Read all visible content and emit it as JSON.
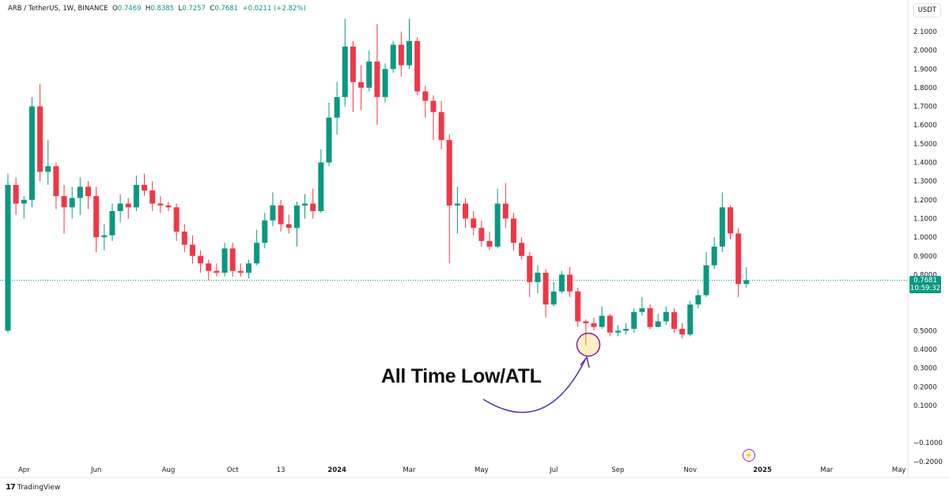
{
  "header": {
    "symbol": "ARB / TetherUS, 1W, BINANCE",
    "open_label": "O",
    "open": "0.7469",
    "high_label": "H",
    "high": "0.8385",
    "low_label": "L",
    "low": "0.7257",
    "close_label": "C",
    "close": "0.7681",
    "change": "+0.0211 (+2.82%)"
  },
  "currency": "USDT",
  "brand": {
    "logo_mark": "17",
    "name": "TradingView"
  },
  "last_price": {
    "value": "0.7681",
    "countdown": "10:59:32",
    "color": "#089981"
  },
  "annotation": {
    "text": "All Time Low/ATL",
    "highlight_color": "#ffd54f",
    "arrow_color": "#5e35b1"
  },
  "colors": {
    "up": "#089981",
    "down": "#f23645",
    "price_line": "#089981"
  },
  "chart_data": {
    "type": "candlestick",
    "interval": "1W",
    "ylim": [
      -0.22,
      2.18
    ],
    "y_ticks": [
      2.1,
      2.0,
      1.9,
      1.8,
      1.7,
      1.6,
      1.5,
      1.4,
      1.3,
      1.2,
      1.1,
      1.0,
      0.9,
      0.8,
      0.5,
      0.4,
      0.3,
      0.2,
      0.1,
      -0.1,
      -0.2
    ],
    "y_tick_labels": [
      "2.1000",
      "2.0000",
      "1.9000",
      "1.8000",
      "1.7000",
      "1.6000",
      "1.5000",
      "1.4000",
      "1.3000",
      "1.2000",
      "1.1000",
      "1.0000",
      "0.9000",
      "0.8000",
      "0.5000",
      "0.4000",
      "0.3000",
      "0.2000",
      "0.1000",
      "−0.1000",
      "−0.2000"
    ],
    "x_labels": [
      {
        "label": "Apr",
        "bar": 2
      },
      {
        "label": "Jun",
        "bar": 11
      },
      {
        "label": "Aug",
        "bar": 20
      },
      {
        "label": "Oct",
        "bar": 28
      },
      {
        "label": "13",
        "bar": 34
      },
      {
        "label": "2024",
        "bar": 41
      },
      {
        "label": "Mar",
        "bar": 50
      },
      {
        "label": "May",
        "bar": 59
      },
      {
        "label": "Jul",
        "bar": 68
      },
      {
        "label": "Sep",
        "bar": 76
      },
      {
        "label": "Nov",
        "bar": 85
      },
      {
        "label": "2025",
        "bar": 94
      },
      {
        "label": "Mar",
        "bar": 102
      },
      {
        "label": "May",
        "bar": 111
      }
    ],
    "candles": [
      [
        0.5,
        1.28,
        1.34,
        0.49
      ],
      [
        1.28,
        1.18,
        1.32,
        1.12
      ],
      [
        1.18,
        1.2,
        1.22,
        1.1
      ],
      [
        1.2,
        1.7,
        1.75,
        1.16
      ],
      [
        1.7,
        1.35,
        1.82,
        1.3
      ],
      [
        1.35,
        1.38,
        1.52,
        1.28
      ],
      [
        1.38,
        1.22,
        1.4,
        1.15
      ],
      [
        1.22,
        1.16,
        1.28,
        1.02
      ],
      [
        1.16,
        1.21,
        1.27,
        1.1
      ],
      [
        1.21,
        1.27,
        1.32,
        1.12
      ],
      [
        1.27,
        1.22,
        1.3,
        1.15
      ],
      [
        1.22,
        1.0,
        1.27,
        0.92
      ],
      [
        1.0,
        1.01,
        1.07,
        0.93
      ],
      [
        1.01,
        1.14,
        1.18,
        0.98
      ],
      [
        1.14,
        1.18,
        1.23,
        1.08
      ],
      [
        1.18,
        1.16,
        1.21,
        1.1
      ],
      [
        1.16,
        1.28,
        1.33,
        1.14
      ],
      [
        1.28,
        1.25,
        1.34,
        1.22
      ],
      [
        1.25,
        1.18,
        1.3,
        1.14
      ],
      [
        1.18,
        1.17,
        1.22,
        1.13
      ],
      [
        1.17,
        1.16,
        1.19,
        1.14
      ],
      [
        1.16,
        1.03,
        1.18,
        0.98
      ],
      [
        1.03,
        0.96,
        1.07,
        0.92
      ],
      [
        0.96,
        0.9,
        1.01,
        0.86
      ],
      [
        0.9,
        0.86,
        0.93,
        0.81
      ],
      [
        0.86,
        0.82,
        0.88,
        0.77
      ],
      [
        0.82,
        0.81,
        0.86,
        0.79
      ],
      [
        0.81,
        0.94,
        0.97,
        0.79
      ],
      [
        0.94,
        0.82,
        0.97,
        0.79
      ],
      [
        0.82,
        0.81,
        0.86,
        0.79
      ],
      [
        0.81,
        0.86,
        0.88,
        0.78
      ],
      [
        0.86,
        0.97,
        1.04,
        0.85
      ],
      [
        0.97,
        1.09,
        1.13,
        0.94
      ],
      [
        1.09,
        1.17,
        1.24,
        1.06
      ],
      [
        1.17,
        1.07,
        1.2,
        1.03
      ],
      [
        1.07,
        1.05,
        1.12,
        1.02
      ],
      [
        1.05,
        1.17,
        1.19,
        0.95
      ],
      [
        1.17,
        1.18,
        1.23,
        1.1
      ],
      [
        1.18,
        1.14,
        1.26,
        1.1
      ],
      [
        1.14,
        1.4,
        1.47,
        1.13
      ],
      [
        1.4,
        1.64,
        1.72,
        1.38
      ],
      [
        1.64,
        1.75,
        1.83,
        1.55
      ],
      [
        1.75,
        2.02,
        2.17,
        1.7
      ],
      [
        2.02,
        1.83,
        2.05,
        1.67
      ],
      [
        1.83,
        1.8,
        1.92,
        1.68
      ],
      [
        1.8,
        1.94,
        2.0,
        1.78
      ],
      [
        1.94,
        1.75,
        2.14,
        1.6
      ],
      [
        1.75,
        1.9,
        1.93,
        1.72
      ],
      [
        1.9,
        2.03,
        2.05,
        1.88
      ],
      [
        2.03,
        1.92,
        2.1,
        1.86
      ],
      [
        1.92,
        2.05,
        2.17,
        1.9
      ],
      [
        2.05,
        1.78,
        2.07,
        1.76
      ],
      [
        1.78,
        1.73,
        1.81,
        1.64
      ],
      [
        1.73,
        1.67,
        1.76,
        1.52
      ],
      [
        1.67,
        1.52,
        1.73,
        1.47
      ],
      [
        1.52,
        1.17,
        1.55,
        0.86
      ],
      [
        1.17,
        1.18,
        1.27,
        1.02
      ],
      [
        1.18,
        1.1,
        1.21,
        1.05
      ],
      [
        1.1,
        1.05,
        1.14,
        1.01
      ],
      [
        1.05,
        0.98,
        1.09,
        0.95
      ],
      [
        0.98,
        0.95,
        1.03,
        0.93
      ],
      [
        0.95,
        1.18,
        1.26,
        0.94
      ],
      [
        1.18,
        1.1,
        1.29,
        1.05
      ],
      [
        1.1,
        0.97,
        1.13,
        0.93
      ],
      [
        0.97,
        0.9,
        1.0,
        0.88
      ],
      [
        0.9,
        0.76,
        0.92,
        0.68
      ],
      [
        0.76,
        0.81,
        0.85,
        0.7
      ],
      [
        0.81,
        0.64,
        0.83,
        0.57
      ],
      [
        0.64,
        0.71,
        0.76,
        0.63
      ],
      [
        0.71,
        0.8,
        0.82,
        0.7
      ],
      [
        0.8,
        0.71,
        0.84,
        0.68
      ],
      [
        0.71,
        0.55,
        0.73,
        0.52
      ],
      [
        0.55,
        0.54,
        0.56,
        0.42
      ],
      [
        0.54,
        0.52,
        0.57,
        0.5
      ],
      [
        0.52,
        0.58,
        0.63,
        0.51
      ],
      [
        0.58,
        0.49,
        0.59,
        0.47
      ],
      [
        0.49,
        0.5,
        0.53,
        0.47
      ],
      [
        0.5,
        0.51,
        0.54,
        0.48
      ],
      [
        0.51,
        0.6,
        0.62,
        0.49
      ],
      [
        0.6,
        0.62,
        0.68,
        0.58
      ],
      [
        0.62,
        0.52,
        0.64,
        0.51
      ],
      [
        0.52,
        0.55,
        0.59,
        0.52
      ],
      [
        0.55,
        0.6,
        0.63,
        0.53
      ],
      [
        0.6,
        0.51,
        0.62,
        0.49
      ],
      [
        0.51,
        0.48,
        0.54,
        0.46
      ],
      [
        0.48,
        0.64,
        0.66,
        0.47
      ],
      [
        0.64,
        0.69,
        0.72,
        0.62
      ],
      [
        0.69,
        0.85,
        0.92,
        0.68
      ],
      [
        0.85,
        0.95,
        1.0,
        0.83
      ],
      [
        0.95,
        1.16,
        1.24,
        0.92
      ],
      [
        1.16,
        1.02,
        1.17,
        0.99
      ],
      [
        1.02,
        0.75,
        1.05,
        0.68
      ],
      [
        0.75,
        0.77,
        0.84,
        0.73
      ]
    ]
  }
}
